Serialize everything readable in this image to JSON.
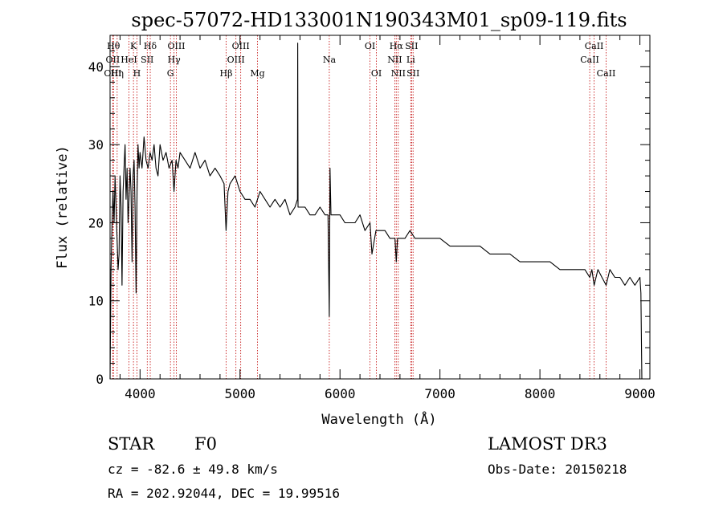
{
  "colors": {
    "background": "#ffffff",
    "ink": "#000000",
    "line_marker": "#c00000"
  },
  "chart_data": {
    "type": "line",
    "title": "spec-57072-HD133001N190343M01_sp09-119.fits",
    "xlabel": "Wavelength (Å)",
    "ylabel": "Flux (relative)",
    "xlim": [
      3700,
      9100
    ],
    "ylim": [
      0,
      44
    ],
    "x_ticks": [
      4000,
      5000,
      6000,
      7000,
      8000,
      9000
    ],
    "y_ticks": [
      0,
      10,
      20,
      30,
      40
    ],
    "grid": false,
    "spectrum": {
      "name": "flux",
      "x": [
        3700,
        3710,
        3720,
        3730,
        3740,
        3750,
        3760,
        3770,
        3780,
        3790,
        3800,
        3810,
        3820,
        3830,
        3840,
        3850,
        3860,
        3870,
        3880,
        3890,
        3900,
        3910,
        3920,
        3930,
        3940,
        3950,
        3960,
        3970,
        3980,
        3990,
        4000,
        4020,
        4040,
        4060,
        4080,
        4100,
        4120,
        4140,
        4160,
        4180,
        4200,
        4230,
        4260,
        4290,
        4320,
        4340,
        4360,
        4380,
        4400,
        4450,
        4500,
        4550,
        4600,
        4650,
        4700,
        4750,
        4800,
        4840,
        4860,
        4880,
        4900,
        4950,
        5000,
        5050,
        5100,
        5150,
        5200,
        5250,
        5300,
        5350,
        5400,
        5450,
        5500,
        5550,
        5575,
        5577,
        5580,
        5600,
        5650,
        5700,
        5750,
        5800,
        5850,
        5880,
        5893,
        5900,
        5910,
        5950,
        6000,
        6050,
        6100,
        6150,
        6200,
        6250,
        6300,
        6320,
        6360,
        6400,
        6450,
        6500,
        6530,
        6550,
        6563,
        6575,
        6600,
        6650,
        6700,
        6750,
        6800,
        6900,
        7000,
        7100,
        7200,
        7300,
        7400,
        7500,
        7600,
        7700,
        7800,
        7900,
        8000,
        8100,
        8200,
        8300,
        8400,
        8450,
        8498,
        8520,
        8542,
        8580,
        8620,
        8662,
        8700,
        8750,
        8800,
        8850,
        8900,
        8950,
        9000,
        9010,
        9020
      ],
      "values": [
        0,
        14,
        20,
        24,
        20,
        26,
        22,
        18,
        14,
        16,
        26,
        22,
        12,
        24,
        27,
        30,
        23,
        27,
        20,
        23,
        27,
        24,
        15,
        26,
        28,
        22,
        11,
        24,
        30,
        27,
        29,
        27,
        31,
        28,
        27,
        29,
        28,
        30,
        27,
        26,
        30,
        28,
        29,
        27,
        28,
        24,
        28,
        27,
        29,
        28,
        27,
        29,
        27,
        28,
        26,
        27,
        26,
        25,
        19,
        24,
        25,
        26,
        24,
        23,
        23,
        22,
        24,
        23,
        22,
        23,
        22,
        23,
        21,
        22,
        23,
        43,
        22,
        22,
        22,
        21,
        21,
        22,
        21,
        21,
        8,
        27,
        21,
        21,
        21,
        20,
        20,
        20,
        21,
        19,
        20,
        16,
        19,
        19,
        19,
        18,
        18,
        18,
        15,
        18,
        18,
        18,
        19,
        18,
        18,
        18,
        18,
        17,
        17,
        17,
        17,
        16,
        16,
        16,
        15,
        15,
        15,
        15,
        14,
        14,
        14,
        14,
        13,
        14,
        12,
        14,
        13,
        12,
        14,
        13,
        13,
        12,
        13,
        12,
        13,
        11,
        0
      ]
    },
    "line_markers": [
      {
        "wavelength": 3734,
        "label": "Hθ",
        "tier": 0
      },
      {
        "wavelength": 3727,
        "label": "OII",
        "tier": 1
      },
      {
        "wavelength": 3727,
        "label": "OIII",
        "tier": 2
      },
      {
        "wavelength": 3771,
        "label": "Hη",
        "tier": 2
      },
      {
        "wavelength": 3889,
        "label": "HeI",
        "tier": 1
      },
      {
        "wavelength": 3934,
        "label": "K",
        "tier": 0
      },
      {
        "wavelength": 3969,
        "label": "H",
        "tier": 2
      },
      {
        "wavelength": 4072,
        "label": "SII",
        "tier": 1
      },
      {
        "wavelength": 4102,
        "label": "Hδ",
        "tier": 0
      },
      {
        "wavelength": 4304,
        "label": "G",
        "tier": 2
      },
      {
        "wavelength": 4340,
        "label": "Hγ",
        "tier": 1
      },
      {
        "wavelength": 4363,
        "label": "OIII",
        "tier": 0
      },
      {
        "wavelength": 4861,
        "label": "Hβ",
        "tier": 2
      },
      {
        "wavelength": 4959,
        "label": "OIII",
        "tier": 1
      },
      {
        "wavelength": 5007,
        "label": "OIII",
        "tier": 0
      },
      {
        "wavelength": 5175,
        "label": "Mg",
        "tier": 2
      },
      {
        "wavelength": 5893,
        "label": "Na",
        "tier": 1
      },
      {
        "wavelength": 6300,
        "label": "OI",
        "tier": 0
      },
      {
        "wavelength": 6364,
        "label": "OI",
        "tier": 2
      },
      {
        "wavelength": 6548,
        "label": "NII",
        "tier": 1
      },
      {
        "wavelength": 6563,
        "label": "Hα",
        "tier": 0
      },
      {
        "wavelength": 6583,
        "label": "NII",
        "tier": 2
      },
      {
        "wavelength": 6708,
        "label": "Li",
        "tier": 1
      },
      {
        "wavelength": 6716,
        "label": "SII",
        "tier": 0
      },
      {
        "wavelength": 6731,
        "label": "SII",
        "tier": 2
      },
      {
        "wavelength": 8498,
        "label": "CaII",
        "tier": 1
      },
      {
        "wavelength": 8542,
        "label": "CaII",
        "tier": 0
      },
      {
        "wavelength": 8662,
        "label": "CaII",
        "tier": 2
      }
    ]
  },
  "footer": {
    "object_class": "STAR",
    "subclass": "F0",
    "survey": "LAMOST DR3",
    "cz": "cz = -82.6 ± 49.8 km/s",
    "obs_date": "Obs-Date: 20150218",
    "coords": "RA = 202.92044, DEC =  19.99516"
  }
}
